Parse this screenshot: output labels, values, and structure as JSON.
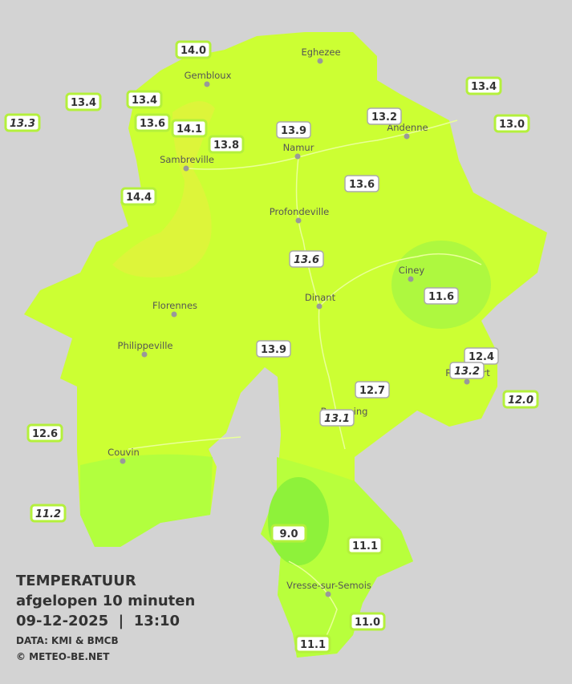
{
  "info": {
    "title": "TEMPERATUUR",
    "subtitle": "afgelopen 10 minuten",
    "datetime": "09-12-2025  |  13:10",
    "source": "DATA: KMI & BMCB",
    "credit": "© METEO-BE.NET"
  },
  "cities": [
    "Eghezee",
    "Gembloux",
    "Andenne",
    "Namur",
    "Sambreville",
    "Profondeville",
    "Ciney",
    "Dinant",
    "Florennes",
    "Philippeville",
    "Rochefort",
    "Beauraing",
    "Couvin",
    "Vresse-sur-Semois"
  ],
  "stations": [
    "14.0",
    "13.4",
    "13.4",
    "13.3",
    "13.6",
    "14.1",
    "13.8",
    "13.9",
    "13.2",
    "13.4",
    "13.0",
    "14.4",
    "13.6",
    "13.6",
    "11.6",
    "13.9",
    "12.4",
    "13.2",
    "12.7",
    "12.0",
    "13.1",
    "12.6",
    "11.2",
    "9.0",
    "11.1",
    "11.0",
    "11.1"
  ]
}
